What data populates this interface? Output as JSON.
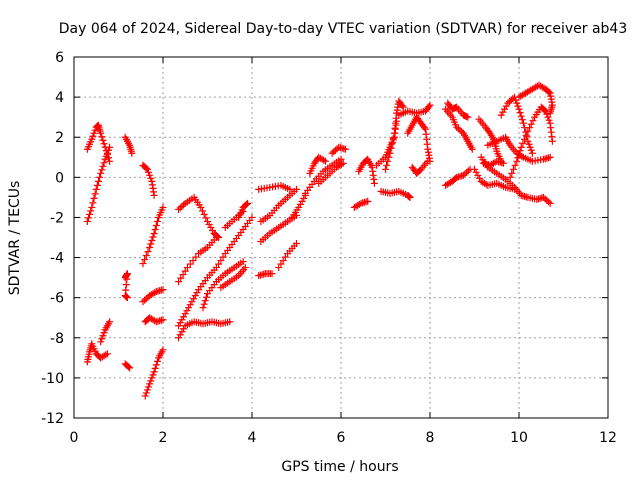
{
  "chart_data": {
    "type": "scatter",
    "title": "Day 064 of 2024, Sidereal Day-to-day VTEC variation (SDTVAR) for receiver ab43",
    "xlabel": "GPS time / hours",
    "ylabel": "SDTVAR / TECUs",
    "xlim": [
      0,
      12
    ],
    "ylim": [
      -12,
      6
    ],
    "xticks": [
      "0",
      "2",
      "4",
      "6",
      "8",
      "10",
      "12"
    ],
    "yticks": [
      "-12",
      "-10",
      "-8",
      "-6",
      "-4",
      "-2",
      "0",
      "2",
      "4",
      "6"
    ],
    "grid": true,
    "marker": "+",
    "color": "#ff0000",
    "series": [
      {
        "points": [
          [
            0.3,
            1.4
          ],
          [
            0.4,
            1.9
          ],
          [
            0.5,
            2.5
          ],
          [
            0.55,
            2.6
          ],
          [
            0.6,
            2.2
          ],
          [
            0.7,
            1.5
          ],
          [
            0.8,
            0.8
          ]
        ]
      },
      {
        "points": [
          [
            0.3,
            -2.2
          ],
          [
            0.4,
            -1.5
          ],
          [
            0.5,
            -0.6
          ],
          [
            0.6,
            0.2
          ],
          [
            0.7,
            0.9
          ],
          [
            0.8,
            1.5
          ]
        ]
      },
      {
        "points": [
          [
            1.15,
            2.0
          ],
          [
            1.25,
            1.6
          ],
          [
            1.3,
            1.2
          ]
        ]
      },
      {
        "points": [
          [
            1.55,
            0.6
          ],
          [
            1.65,
            0.4
          ],
          [
            1.75,
            -0.2
          ],
          [
            1.8,
            -0.9
          ]
        ]
      },
      {
        "points": [
          [
            0.3,
            -9.2
          ],
          [
            0.35,
            -8.7
          ],
          [
            0.4,
            -8.3
          ],
          [
            0.5,
            -8.8
          ],
          [
            0.6,
            -9.0
          ],
          [
            0.75,
            -8.8
          ]
        ]
      },
      {
        "points": [
          [
            0.6,
            -8.2
          ],
          [
            0.7,
            -7.6
          ],
          [
            0.8,
            -7.2
          ]
        ]
      },
      {
        "points": [
          [
            1.15,
            -5.0
          ],
          [
            1.2,
            -4.8
          ],
          [
            1.15,
            -5.9
          ],
          [
            1.2,
            -6.0
          ]
        ]
      },
      {
        "points": [
          [
            1.15,
            -9.3
          ],
          [
            1.25,
            -9.5
          ]
        ]
      },
      {
        "points": [
          [
            1.55,
            -4.3
          ],
          [
            1.7,
            -3.5
          ],
          [
            1.8,
            -2.8
          ],
          [
            1.9,
            -2.0
          ],
          [
            2.0,
            -1.5
          ]
        ]
      },
      {
        "points": [
          [
            1.55,
            -6.2
          ],
          [
            1.7,
            -5.9
          ],
          [
            1.85,
            -5.7
          ],
          [
            2.0,
            -5.6
          ]
        ]
      },
      {
        "points": [
          [
            1.6,
            -7.2
          ],
          [
            1.7,
            -7.0
          ],
          [
            1.85,
            -7.2
          ],
          [
            2.0,
            -7.1
          ]
        ]
      },
      {
        "points": [
          [
            1.6,
            -10.9
          ],
          [
            1.7,
            -10.3
          ],
          [
            1.8,
            -9.7
          ],
          [
            1.9,
            -9.0
          ],
          [
            2.0,
            -8.6
          ]
        ]
      },
      {
        "points": [
          [
            2.35,
            -1.6
          ],
          [
            2.5,
            -1.3
          ],
          [
            2.7,
            -1.0
          ],
          [
            2.85,
            -1.5
          ],
          [
            3.0,
            -2.2
          ],
          [
            3.15,
            -2.8
          ],
          [
            3.25,
            -3.0
          ]
        ]
      },
      {
        "points": [
          [
            2.35,
            -5.2
          ],
          [
            2.55,
            -4.5
          ],
          [
            2.8,
            -3.8
          ],
          [
            3.0,
            -3.5
          ],
          [
            3.2,
            -3.0
          ]
        ]
      },
      {
        "points": [
          [
            2.35,
            -7.4
          ],
          [
            2.5,
            -6.8
          ],
          [
            2.65,
            -6.2
          ],
          [
            2.8,
            -5.6
          ],
          [
            3.0,
            -5.0
          ],
          [
            3.2,
            -4.5
          ],
          [
            3.4,
            -3.8
          ],
          [
            3.6,
            -3.2
          ],
          [
            3.8,
            -2.6
          ],
          [
            4.0,
            -2.0
          ]
        ]
      },
      {
        "points": [
          [
            2.35,
            -8.0
          ],
          [
            2.5,
            -7.4
          ],
          [
            2.7,
            -7.2
          ],
          [
            2.9,
            -7.3
          ],
          [
            3.1,
            -7.2
          ],
          [
            3.3,
            -7.3
          ],
          [
            3.5,
            -7.2
          ]
        ]
      },
      {
        "points": [
          [
            2.9,
            -6.5
          ],
          [
            3.0,
            -5.8
          ],
          [
            3.2,
            -5.2
          ],
          [
            3.4,
            -4.8
          ],
          [
            3.6,
            -4.5
          ],
          [
            3.8,
            -4.2
          ]
        ]
      },
      {
        "points": [
          [
            3.3,
            -5.5
          ],
          [
            3.5,
            -5.2
          ],
          [
            3.7,
            -4.9
          ],
          [
            3.85,
            -4.5
          ]
        ]
      },
      {
        "points": [
          [
            3.7,
            -2.0
          ],
          [
            3.8,
            -1.5
          ],
          [
            3.9,
            -1.3
          ]
        ]
      },
      {
        "points": [
          [
            3.4,
            -2.5
          ],
          [
            3.6,
            -2.1
          ],
          [
            3.8,
            -1.7
          ]
        ]
      },
      {
        "points": [
          [
            4.15,
            -4.9
          ],
          [
            4.3,
            -4.8
          ],
          [
            4.45,
            -4.8
          ]
        ]
      },
      {
        "points": [
          [
            4.2,
            -3.2
          ],
          [
            4.4,
            -2.8
          ],
          [
            4.6,
            -2.5
          ],
          [
            4.8,
            -2.2
          ],
          [
            5.0,
            -1.9
          ]
        ]
      },
      {
        "points": [
          [
            4.2,
            -2.2
          ],
          [
            4.4,
            -1.9
          ],
          [
            4.6,
            -1.4
          ],
          [
            4.8,
            -1.0
          ],
          [
            5.0,
            -0.6
          ]
        ]
      },
      {
        "points": [
          [
            4.15,
            -0.6
          ],
          [
            4.4,
            -0.5
          ],
          [
            4.65,
            -0.4
          ],
          [
            4.85,
            -0.6
          ]
        ]
      },
      {
        "points": [
          [
            4.6,
            -4.5
          ],
          [
            4.8,
            -3.8
          ],
          [
            5.0,
            -3.3
          ]
        ]
      },
      {
        "points": [
          [
            4.9,
            -2.0
          ],
          [
            5.05,
            -1.5
          ],
          [
            5.2,
            -0.9
          ]
        ]
      },
      {
        "points": [
          [
            5.2,
            -0.8
          ],
          [
            5.4,
            -0.2
          ],
          [
            5.6,
            0.3
          ],
          [
            5.8,
            0.6
          ],
          [
            6.0,
            0.9
          ]
        ]
      },
      {
        "points": [
          [
            5.3,
            0.2
          ],
          [
            5.4,
            0.7
          ],
          [
            5.5,
            1.0
          ],
          [
            5.65,
            0.8
          ]
        ]
      },
      {
        "points": [
          [
            5.5,
            -0.3
          ],
          [
            5.7,
            0.1
          ],
          [
            5.9,
            0.5
          ],
          [
            6.05,
            0.7
          ]
        ]
      },
      {
        "points": [
          [
            5.8,
            1.2
          ],
          [
            5.95,
            1.5
          ],
          [
            6.1,
            1.4
          ]
        ]
      },
      {
        "points": [
          [
            6.3,
            -1.5
          ],
          [
            6.45,
            -1.3
          ],
          [
            6.6,
            -1.2
          ]
        ]
      },
      {
        "points": [
          [
            6.4,
            0.3
          ],
          [
            6.5,
            0.7
          ],
          [
            6.6,
            0.9
          ],
          [
            6.7,
            0.5
          ],
          [
            6.75,
            -0.3
          ]
        ]
      },
      {
        "points": [
          [
            6.8,
            0.6
          ],
          [
            7.0,
            1.0
          ],
          [
            7.1,
            1.5
          ],
          [
            7.2,
            2.0
          ],
          [
            7.25,
            2.8
          ]
        ]
      },
      {
        "points": [
          [
            7.0,
            0.4
          ],
          [
            7.1,
            1.2
          ],
          [
            7.2,
            2.2
          ],
          [
            7.25,
            3.2
          ],
          [
            7.3,
            3.8
          ],
          [
            7.4,
            3.5
          ]
        ]
      },
      {
        "points": [
          [
            6.9,
            -0.7
          ],
          [
            7.1,
            -0.8
          ],
          [
            7.3,
            -0.7
          ],
          [
            7.5,
            -0.9
          ],
          [
            7.55,
            -1.0
          ]
        ]
      },
      {
        "points": [
          [
            7.5,
            2.2
          ],
          [
            7.6,
            2.6
          ],
          [
            7.7,
            3.0
          ],
          [
            7.8,
            2.7
          ],
          [
            7.9,
            2.4
          ],
          [
            7.95,
            1.4
          ],
          [
            8.0,
            0.8
          ]
        ]
      },
      {
        "points": [
          [
            7.6,
            0.5
          ],
          [
            7.7,
            0.2
          ],
          [
            7.8,
            0.4
          ],
          [
            7.95,
            0.8
          ]
        ]
      },
      {
        "points": [
          [
            7.3,
            3.1
          ],
          [
            7.5,
            3.3
          ],
          [
            7.7,
            3.2
          ],
          [
            7.9,
            3.3
          ],
          [
            8.0,
            3.6
          ]
        ]
      },
      {
        "points": [
          [
            8.35,
            3.4
          ],
          [
            8.5,
            3.0
          ],
          [
            8.6,
            2.5
          ],
          [
            8.75,
            2.2
          ],
          [
            8.85,
            1.8
          ],
          [
            8.95,
            1.4
          ]
        ]
      },
      {
        "points": [
          [
            8.4,
            3.7
          ],
          [
            8.5,
            3.4
          ],
          [
            8.6,
            3.5
          ],
          [
            8.75,
            3.1
          ],
          [
            8.85,
            3.0
          ]
        ]
      },
      {
        "points": [
          [
            8.35,
            -0.4
          ],
          [
            8.5,
            -0.2
          ],
          [
            8.6,
            0.0
          ],
          [
            8.75,
            0.1
          ],
          [
            8.9,
            0.4
          ]
        ]
      },
      {
        "points": [
          [
            9.1,
            2.9
          ],
          [
            9.25,
            2.5
          ],
          [
            9.35,
            2.2
          ],
          [
            9.45,
            1.8
          ],
          [
            9.5,
            1.3
          ],
          [
            9.6,
            0.8
          ]
        ]
      },
      {
        "points": [
          [
            9.0,
            0.4
          ],
          [
            9.15,
            -0.2
          ],
          [
            9.3,
            -0.4
          ],
          [
            9.5,
            -0.3
          ],
          [
            9.7,
            -0.5
          ],
          [
            9.9,
            -0.6
          ]
        ]
      },
      {
        "points": [
          [
            9.15,
            1.0
          ],
          [
            9.3,
            0.5
          ],
          [
            9.5,
            0.2
          ],
          [
            9.7,
            -0.1
          ],
          [
            9.9,
            -0.5
          ],
          [
            10.05,
            -0.9
          ],
          [
            10.2,
            -1.0
          ],
          [
            10.4,
            -1.1
          ],
          [
            10.55,
            -1.0
          ],
          [
            10.7,
            -1.3
          ]
        ]
      },
      {
        "points": [
          [
            9.3,
            1.6
          ],
          [
            9.5,
            1.8
          ],
          [
            9.7,
            2.0
          ],
          [
            9.8,
            1.6
          ],
          [
            9.95,
            1.2
          ],
          [
            10.1,
            1.0
          ],
          [
            10.3,
            0.8
          ],
          [
            10.55,
            0.9
          ],
          [
            10.7,
            1.0
          ]
        ]
      },
      {
        "points": [
          [
            9.6,
            3.1
          ],
          [
            9.75,
            3.7
          ],
          [
            9.9,
            4.0
          ],
          [
            10.0,
            3.4
          ],
          [
            10.1,
            2.7
          ],
          [
            10.2,
            1.8
          ],
          [
            10.3,
            1.2
          ]
        ]
      },
      {
        "points": [
          [
            9.8,
            0.0
          ],
          [
            9.95,
            0.8
          ],
          [
            10.05,
            1.5
          ],
          [
            10.2,
            2.3
          ],
          [
            10.35,
            3.0
          ],
          [
            10.5,
            3.5
          ],
          [
            10.6,
            3.3
          ],
          [
            10.7,
            2.7
          ],
          [
            10.75,
            1.8
          ]
        ]
      },
      {
        "points": [
          [
            10.0,
            4.0
          ],
          [
            10.15,
            4.2
          ],
          [
            10.3,
            4.4
          ],
          [
            10.45,
            4.6
          ],
          [
            10.6,
            4.4
          ],
          [
            10.7,
            4.2
          ],
          [
            10.75,
            3.6
          ],
          [
            10.7,
            3.2
          ]
        ]
      },
      {
        "points": [
          [
            9.2,
            0.7
          ],
          [
            9.35,
            0.6
          ],
          [
            9.5,
            0.8
          ],
          [
            9.65,
            0.7
          ]
        ]
      }
    ]
  }
}
